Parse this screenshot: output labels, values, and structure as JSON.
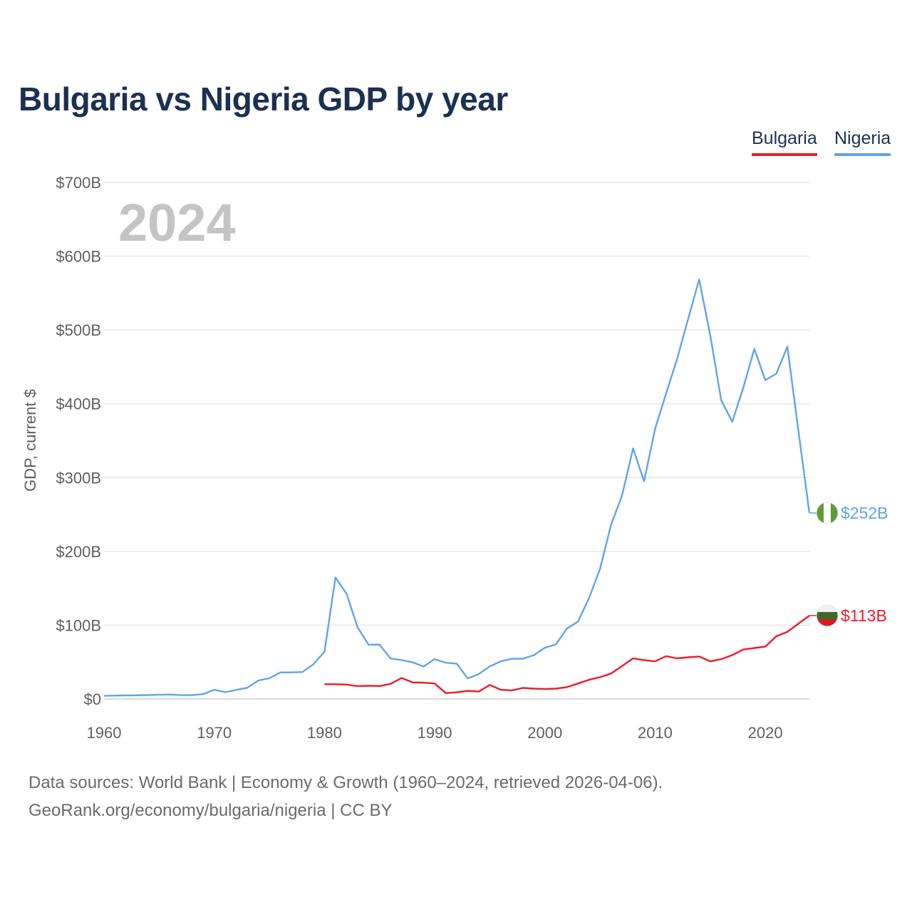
{
  "title": "Bulgaria vs Nigeria GDP by year",
  "legend": [
    {
      "name": "Bulgaria",
      "color": "#ee1c25"
    },
    {
      "name": "Nigeria",
      "color": "#60a5e6"
    }
  ],
  "footer": {
    "sources": "Data sources: World Bank | Economy & Growth (1960–2024, retrieved 2026-04-06).",
    "attribution": "GeoRank.org/economy/bulgaria/nigeria | CC BY"
  },
  "chart_data": {
    "type": "line",
    "title": "Bulgaria vs Nigeria GDP by year",
    "xlabel": "",
    "ylabel": "GDP, current $",
    "year_overlay": "2024",
    "xlim": [
      1960,
      2024
    ],
    "ylim": [
      0,
      700
    ],
    "y_unit": "billions of current US$",
    "x_ticks": [
      1960,
      1970,
      1980,
      1990,
      2000,
      2010,
      2020
    ],
    "x_tick_labels": [
      "1960",
      "1970",
      "1980",
      "1990",
      "2000",
      "2010",
      "2020"
    ],
    "y_ticks": [
      0,
      100,
      200,
      300,
      400,
      500,
      600,
      700
    ],
    "y_tick_labels": [
      "$0",
      "$100B",
      "$200B",
      "$300B",
      "$400B",
      "$500B",
      "$600B",
      "$700B"
    ],
    "grid": true,
    "legend_position": "top-right",
    "series": [
      {
        "name": "Bulgaria",
        "color": "#ee1c25",
        "end_label": "$113B",
        "flag_colors": [
          "#f0f0f0",
          "#3b6b2a",
          "#d71920"
        ],
        "x": [
          1980,
          1981,
          1982,
          1983,
          1984,
          1985,
          1986,
          1987,
          1988,
          1989,
          1990,
          1991,
          1992,
          1993,
          1994,
          1995,
          1996,
          1997,
          1998,
          1999,
          2000,
          2001,
          2002,
          2003,
          2004,
          2005,
          2006,
          2007,
          2008,
          2009,
          2010,
          2011,
          2012,
          2013,
          2014,
          2015,
          2016,
          2017,
          2018,
          2019,
          2020,
          2021,
          2022,
          2023,
          2024
        ],
        "values": [
          20.0,
          20.0,
          19.5,
          17.5,
          18.0,
          17.5,
          20.5,
          28.5,
          22.5,
          22.0,
          21.0,
          8.0,
          9.0,
          11.0,
          10.0,
          19.0,
          12.5,
          11.5,
          15.0,
          14.0,
          13.5,
          14.0,
          16.0,
          21.0,
          26.0,
          29.5,
          34.5,
          44.5,
          55.0,
          52.5,
          51.0,
          58.0,
          55.0,
          56.5,
          57.5,
          51.0,
          54.0,
          59.5,
          67.0,
          69.0,
          71.0,
          85.0,
          91.0,
          102.0,
          113.0
        ]
      },
      {
        "name": "Nigeria",
        "color": "#60a5e6",
        "end_label": "$252B",
        "flag_colors": [
          "#5f9b3c",
          "#ffffff",
          "#5f9b3c"
        ],
        "x": [
          1960,
          1961,
          1962,
          1963,
          1964,
          1965,
          1966,
          1967,
          1968,
          1969,
          1970,
          1971,
          1972,
          1973,
          1974,
          1975,
          1976,
          1977,
          1978,
          1979,
          1980,
          1981,
          1982,
          1983,
          1984,
          1985,
          1986,
          1987,
          1988,
          1989,
          1990,
          1991,
          1992,
          1993,
          1994,
          1995,
          1996,
          1997,
          1998,
          1999,
          2000,
          2001,
          2002,
          2003,
          2004,
          2005,
          2006,
          2007,
          2008,
          2009,
          2010,
          2011,
          2012,
          2013,
          2014,
          2015,
          2016,
          2017,
          2018,
          2019,
          2020,
          2021,
          2022,
          2023,
          2024
        ],
        "values": [
          4.2,
          4.5,
          4.8,
          5.0,
          5.3,
          5.7,
          6.0,
          5.2,
          5.2,
          6.6,
          12.5,
          9.2,
          12.3,
          15.2,
          25.0,
          28.0,
          36.0,
          36.0,
          36.5,
          47.0,
          64.0,
          164.5,
          142.8,
          97.1,
          73.5,
          73.7,
          54.8,
          52.7,
          49.6,
          44.0,
          54.0,
          49.1,
          47.8,
          27.8,
          33.8,
          44.1,
          51.1,
          54.5,
          54.6,
          59.4,
          69.4,
          74.0,
          95.4,
          104.9,
          136.4,
          176.1,
          236.1,
          275.6,
          339.5,
          295.0,
          366.0,
          414.0,
          460.9,
          514.9,
          568.5,
          493.0,
          404.6,
          375.7,
          421.7,
          474.5,
          432.2,
          440.8,
          477.4,
          363.8,
          252.0
        ]
      }
    ]
  }
}
